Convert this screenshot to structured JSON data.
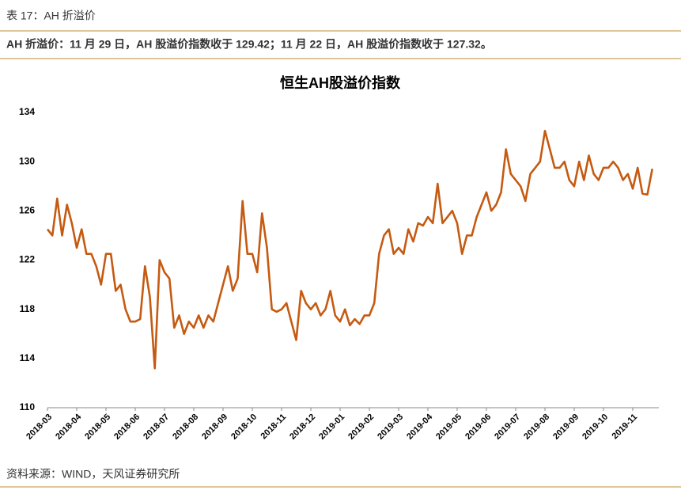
{
  "caption": "表 17：AH 折溢价",
  "summary": "AH 折溢价：11 月 29 日，AH 股溢价指数收于 129.42；11 月 22 日，AH 股溢价指数收于 127.32。",
  "source": "资料来源：WIND，天风证券研究所",
  "chart_data": {
    "type": "line",
    "title": "恒生AH股溢价指数",
    "categories": [
      "2018-03",
      null,
      null,
      null,
      null,
      null,
      "2018-04",
      null,
      null,
      null,
      null,
      null,
      "2018-05",
      null,
      null,
      null,
      null,
      null,
      "2018-06",
      null,
      null,
      null,
      null,
      null,
      "2018-07",
      null,
      null,
      null,
      null,
      null,
      "2018-08",
      null,
      null,
      null,
      null,
      null,
      "2018-09",
      null,
      null,
      null,
      null,
      null,
      "2018-10",
      null,
      null,
      null,
      null,
      null,
      "2018-11",
      null,
      null,
      null,
      null,
      null,
      "2018-12",
      null,
      null,
      null,
      null,
      null,
      "2019-01",
      null,
      null,
      null,
      null,
      null,
      "2019-02",
      null,
      null,
      null,
      null,
      null,
      "2019-03",
      null,
      null,
      null,
      null,
      null,
      "2019-04",
      null,
      null,
      null,
      null,
      null,
      "2019-05",
      null,
      null,
      null,
      null,
      null,
      "2019-06",
      null,
      null,
      null,
      null,
      null,
      "2019-07",
      null,
      null,
      null,
      null,
      null,
      "2019-08",
      null,
      null,
      null,
      null,
      null,
      "2019-09",
      null,
      null,
      null,
      null,
      null,
      "2019-10",
      null,
      null,
      null,
      null,
      null,
      "2019-11",
      null,
      null,
      null,
      null
    ],
    "series": [
      {
        "name": "恒生AH股溢价指数",
        "color": "#c55a11",
        "values": [
          124.5,
          124,
          127,
          124,
          126.5,
          125,
          123,
          124.5,
          122.5,
          122.5,
          121.5,
          120,
          122.5,
          122.5,
          119.5,
          120,
          118,
          117,
          117,
          117.2,
          121.5,
          119,
          113.2,
          122,
          121,
          120.5,
          116.5,
          117.5,
          116,
          117,
          116.5,
          117.5,
          116.5,
          117.5,
          117,
          118.5,
          120,
          121.5,
          119.5,
          120.5,
          126.8,
          122.5,
          122.5,
          121,
          125.8,
          123,
          118,
          117.8,
          118,
          118.5,
          117,
          115.5,
          119.5,
          118.5,
          118,
          118.5,
          117.5,
          118,
          119.5,
          117.5,
          117,
          118,
          116.7,
          117.2,
          116.8,
          117.5,
          117.5,
          118.5,
          122.5,
          124,
          124.5,
          122.5,
          123,
          122.5,
          124.5,
          123.5,
          125,
          124.8,
          125.5,
          125,
          128.2,
          125,
          125.5,
          126,
          125,
          122.5,
          124,
          124,
          125.5,
          126.5,
          127.5,
          126,
          126.5,
          127.5,
          131,
          129,
          128.5,
          128,
          126.8,
          129,
          129.5,
          130,
          132.5,
          131,
          129.5,
          129.5,
          130,
          128.5,
          128,
          130,
          128.5,
          130.5,
          129,
          128.5,
          129.5,
          129.5,
          130,
          129.5,
          128.5,
          129,
          127.8,
          129.5,
          127.4,
          127.32,
          129.42
        ]
      }
    ],
    "ylim": [
      110,
      134
    ],
    "yticks": [
      110,
      114,
      118,
      122,
      126,
      130,
      134
    ]
  }
}
